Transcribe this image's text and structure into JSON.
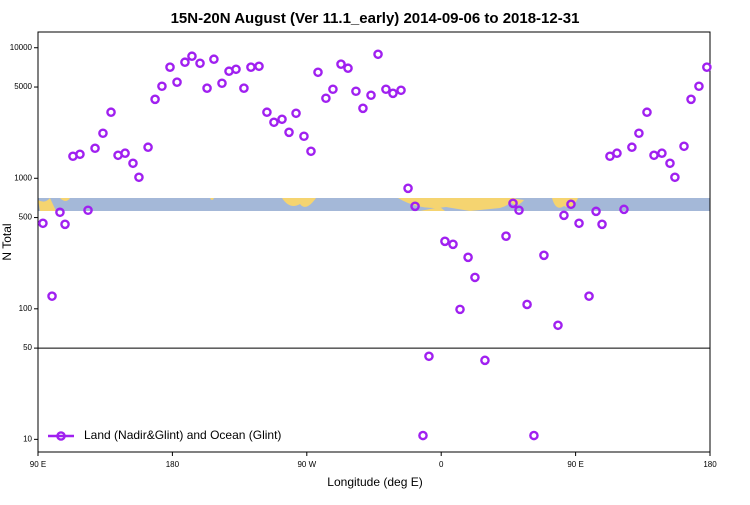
{
  "chart_data": {
    "type": "scatter",
    "title": "15N-20N August (Ver 11.1_early)   2014-09-06 to 2018-12-31",
    "x_label": "Longitude (deg E)",
    "y_label": "N Total",
    "log_y": true,
    "legend": "bottom-left",
    "reference_line": 50,
    "xlim": [
      90,
      540
    ],
    "xticks": [
      {
        "value": 90,
        "label": "90 E"
      },
      180,
      {
        "value": 270,
        "label": "90 W"
      },
      {
        "value": 360,
        "label": "0"
      },
      {
        "value": 450,
        "label": "90 E"
      },
      {
        "value": 540,
        "label": "180"
      }
    ],
    "ylim": [
      8,
      13200
    ],
    "yticks": [
      10,
      50,
      100,
      500,
      1000,
      5000,
      10000
    ],
    "series": [
      {
        "name": "Land (Nadir&Glint) and Ocean (Glint)",
        "color": "#a020f0",
        "x": [
          93.3,
          99.4,
          104.7,
          108.1,
          113.4,
          118.1,
          123.5,
          128.2,
          133.5,
          138.9,
          143.6,
          148.3,
          153.6,
          157.6,
          163.7,
          168.4,
          173.0,
          178.4,
          183.1,
          188.4,
          193.1,
          198.5,
          203.2,
          207.8,
          213.2,
          217.9,
          222.6,
          227.9,
          232.6,
          238.0,
          243.3,
          248.0,
          253.4,
          258.1,
          262.8,
          268.1,
          272.8,
          277.5,
          282.8,
          287.5,
          292.9,
          297.6,
          302.9,
          307.6,
          313.0,
          317.7,
          323.0,
          327.7,
          333.1,
          337.8,
          342.5,
          347.8,
          351.8,
          362.5,
          367.9,
          372.6,
          378.0,
          382.6,
          389.3,
          403.4,
          408.1,
          412.1,
          417.5,
          422.1,
          428.8,
          438.2,
          442.2,
          446.9,
          452.3,
          459.0,
          463.7,
          467.7,
          473.0,
          477.7,
          482.4,
          487.7,
          492.4,
          497.8,
          502.5,
          507.8,
          513.2,
          516.5,
          522.6,
          527.3,
          532.6,
          537.9
        ],
        "values": [
          452,
          125,
          549,
          444,
          1475,
          1527,
          569,
          1698,
          2213,
          3206,
          1500,
          1556,
          1303,
          1018,
          1729,
          4027,
          5070,
          7096,
          5445,
          7745,
          8610,
          7603,
          4898,
          8166,
          5346,
          6607,
          6839,
          4898,
          7096,
          7211,
          3206,
          2685,
          2831,
          2250,
          3148,
          2099,
          1610,
          6486,
          4102,
          4808,
          7482,
          6966,
          4642,
          3436,
          4325,
          8913,
          4808,
          4477,
          4721,
          838,
          610,
          10.7,
          43.3,
          329,
          312,
          99,
          248,
          174,
          40.3,
          360,
          643,
          569,
          108,
          10.7,
          257,
          74.8,
          520,
          632,
          452,
          125,
          558,
          444,
          1475,
          1556,
          578,
          1729,
          2213,
          3206,
          1500,
          1556,
          1303,
          1018,
          1758,
          4027,
          5070,
          7096
        ]
      }
    ]
  }
}
